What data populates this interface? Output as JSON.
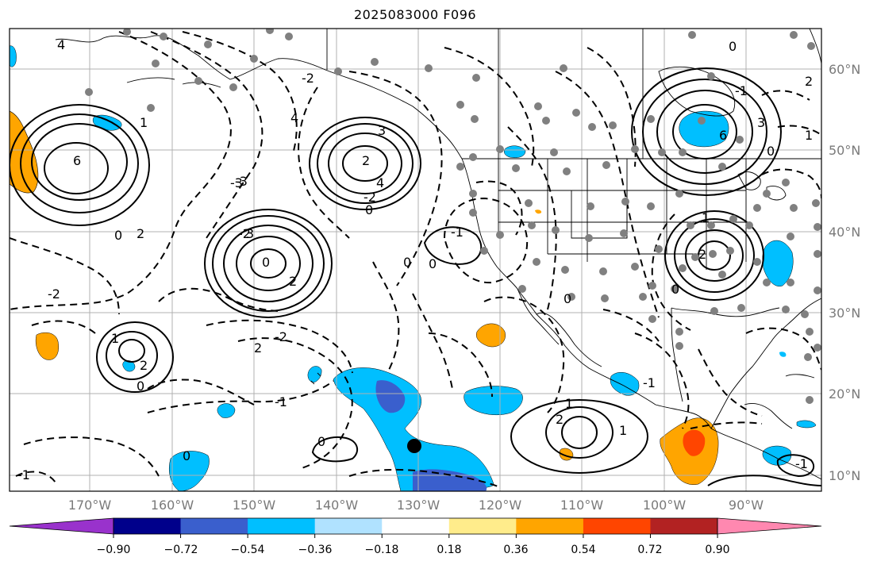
{
  "title": "2025083000 F096",
  "longitude_labels": [
    "170°W",
    "160°W",
    "150°W",
    "140°W",
    "130°W",
    "120°W",
    "110°W",
    "100°W",
    "90°W"
  ],
  "latitude_labels": [
    "60°N",
    "50°N",
    "40°N",
    "30°N",
    "20°N",
    "10°N"
  ],
  "contour_labels": [
    "4",
    "6",
    "1",
    "4",
    "3",
    "-3",
    "-2",
    "-2",
    "0",
    "2",
    "-2",
    "0",
    "3",
    "0",
    "-3",
    "2",
    "4",
    "0",
    "-2",
    "2",
    "-1",
    "0",
    "2",
    "0",
    "-1",
    "0",
    "1",
    "-2",
    "-1",
    "0",
    "2",
    "0",
    "-1",
    "1",
    "2",
    "1",
    "6",
    "-1",
    "2",
    "0",
    "3",
    "0",
    "1",
    "2",
    "0",
    "1",
    "-1"
  ],
  "colorbar": {
    "tick_labels": [
      "−0.90",
      "−0.72",
      "−0.54",
      "−0.36",
      "−0.18",
      "0.18",
      "0.36",
      "0.54",
      "0.72",
      "0.90"
    ],
    "colors": [
      "#9932cc",
      "#00008b",
      "#3a5fcd",
      "#00bfff",
      "#b0e2ff",
      "#ffffff",
      "#ffec8b",
      "#ffa500",
      "#ff4500",
      "#b22222",
      "#ff88b0"
    ]
  },
  "colors": {
    "grid": "#b0b0b0",
    "stations": "#808080",
    "contour": "#000000",
    "fill_light_blue": "#b0e2ff",
    "fill_blue": "#00bfff",
    "fill_dark_blue": "#3a5fcd",
    "fill_orange": "#ffa500",
    "fill_red": "#ff4500"
  },
  "marker": "storm-center-dot"
}
